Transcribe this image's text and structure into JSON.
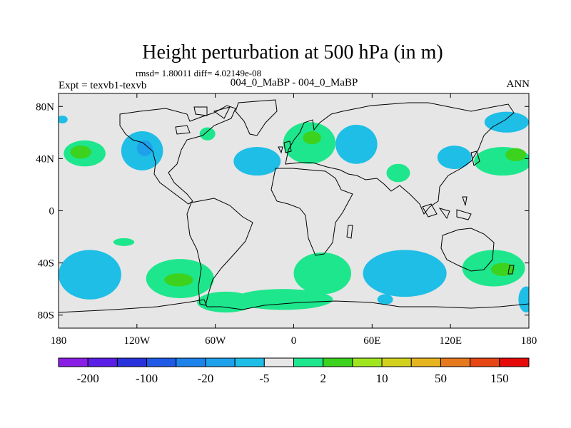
{
  "chart_data": {
    "type": "heatmap",
    "title": "Height perturbation at 500 hPa (in m)",
    "stats_label": "rmsd= 1.80011 diff= 4.02149e-08",
    "left_label": "Expt = texvb1-texvb",
    "center_label": "004_0_MaBP - 004_0_MaBP",
    "right_label": "ANN",
    "x_range": [
      -180,
      180
    ],
    "y_range": [
      -90,
      90
    ],
    "x_ticks": [
      {
        "value": -180,
        "label": "180"
      },
      {
        "value": -120,
        "label": "120W"
      },
      {
        "value": -60,
        "label": "60W"
      },
      {
        "value": 0,
        "label": "0"
      },
      {
        "value": 60,
        "label": "60E"
      },
      {
        "value": 120,
        "label": "120E"
      },
      {
        "value": 180,
        "label": "180"
      }
    ],
    "y_ticks": [
      {
        "value": 80,
        "label": "80N"
      },
      {
        "value": 40,
        "label": "40N"
      },
      {
        "value": 0,
        "label": "0"
      },
      {
        "value": -40,
        "label": "40S"
      },
      {
        "value": -80,
        "label": "80S"
      }
    ],
    "colorbar": {
      "colors": [
        "#8a1ee6",
        "#5a1ee6",
        "#2832dc",
        "#1e5ae6",
        "#1e82eb",
        "#1ea0eb",
        "#1ebee6",
        "#e6e6e6",
        "#1ee68c",
        "#3cd21e",
        "#a0e61e",
        "#d2d21e",
        "#e6b41e",
        "#e6781e",
        "#e64614",
        "#e60a0a"
      ],
      "labels": [
        "-200",
        "-100",
        "-20",
        "-5",
        "2",
        "10",
        "50",
        "150"
      ]
    },
    "anomalies": [
      {
        "lon": -160,
        "lat": 44,
        "rx": 16,
        "ry": 10,
        "level": "pos_low"
      },
      {
        "lon": -163,
        "lat": 45,
        "rx": 8,
        "ry": 5,
        "level": "pos_high"
      },
      {
        "lon": -116,
        "lat": 46,
        "rx": 16,
        "ry": 15,
        "level": "neg_low"
      },
      {
        "lon": -114,
        "lat": 48,
        "rx": 6,
        "ry": 6,
        "level": "neg_high"
      },
      {
        "lon": -66,
        "lat": 59,
        "rx": 6,
        "ry": 5,
        "level": "pos_low"
      },
      {
        "lon": -28,
        "lat": 38,
        "rx": 18,
        "ry": 11,
        "level": "neg_low"
      },
      {
        "lon": 12,
        "lat": 52,
        "rx": 20,
        "ry": 16,
        "level": "pos_low"
      },
      {
        "lon": 14,
        "lat": 56,
        "rx": 7,
        "ry": 5,
        "level": "pos_high"
      },
      {
        "lon": 48,
        "lat": 51,
        "rx": 16,
        "ry": 15,
        "level": "neg_low"
      },
      {
        "lon": 80,
        "lat": 29,
        "rx": 9,
        "ry": 7,
        "level": "pos_low"
      },
      {
        "lon": 123,
        "lat": 41,
        "rx": 13,
        "ry": 9,
        "level": "neg_low"
      },
      {
        "lon": 160,
        "lat": 38,
        "rx": 22,
        "ry": 11,
        "level": "pos_low"
      },
      {
        "lon": 170,
        "lat": 43,
        "rx": 8,
        "ry": 5,
        "level": "pos_high"
      },
      {
        "lon": 163,
        "lat": 68,
        "rx": 17,
        "ry": 8,
        "level": "neg_low"
      },
      {
        "lon": -177,
        "lat": 70,
        "rx": 4,
        "ry": 3,
        "level": "neg_low"
      },
      {
        "lon": -130,
        "lat": -24,
        "rx": 8,
        "ry": 3,
        "level": "pos_low"
      },
      {
        "lon": -156,
        "lat": -49,
        "rx": 24,
        "ry": 19,
        "level": "neg_low"
      },
      {
        "lon": -87,
        "lat": -52,
        "rx": 26,
        "ry": 15,
        "level": "pos_low"
      },
      {
        "lon": -88,
        "lat": -53,
        "rx": 11,
        "ry": 5,
        "level": "pos_high"
      },
      {
        "lon": -52,
        "lat": -70,
        "rx": 22,
        "ry": 8,
        "level": "pos_low"
      },
      {
        "lon": -8,
        "lat": -68,
        "rx": 38,
        "ry": 8,
        "level": "pos_low"
      },
      {
        "lon": 22,
        "lat": -48,
        "rx": 22,
        "ry": 16,
        "level": "pos_low"
      },
      {
        "lon": 85,
        "lat": -48,
        "rx": 32,
        "ry": 18,
        "level": "neg_low"
      },
      {
        "lon": 70,
        "lat": -68,
        "rx": 6,
        "ry": 4,
        "level": "neg_low"
      },
      {
        "lon": 153,
        "lat": -44,
        "rx": 24,
        "ry": 14,
        "level": "pos_low"
      },
      {
        "lon": 160,
        "lat": -45,
        "rx": 9,
        "ry": 5,
        "level": "pos_high"
      },
      {
        "lon": 178,
        "lat": -68,
        "rx": 6,
        "ry": 10,
        "level": "neg_low"
      }
    ]
  }
}
